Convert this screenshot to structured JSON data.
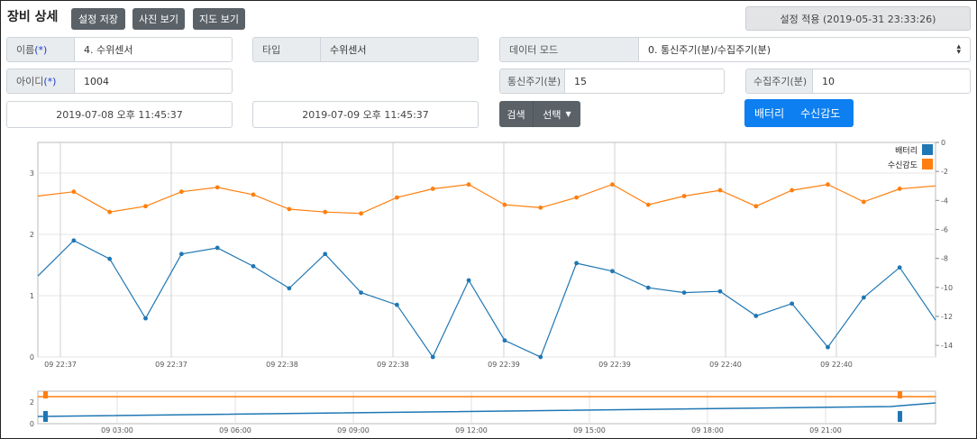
{
  "header": {
    "title": "장비 상세",
    "save_label": "설정 저장",
    "photo_label": "사진 보기",
    "map_label": "지도 보기",
    "apply_label": "설정 적용 (2019-05-31 23:33:26)"
  },
  "form": {
    "name_label": "이름",
    "name_req": "(*)",
    "name_value": "4. 수위센서",
    "type_label": "타입",
    "type_value": "수위센서",
    "mode_label": "데이터 모드",
    "mode_value": "0. 통신주기(분)/수집주기(분)",
    "id_label": "아이디",
    "id_req": "(*)",
    "id_value": "1004",
    "comm_label": "통신주기(분)",
    "comm_value": "15",
    "collect_label": "수집주기(분)",
    "collect_value": "10",
    "date_from": "2019-07-08 오후 11:45:37",
    "date_to": "2019-07-09 오후 11:45:37",
    "search_label": "검색",
    "select_label": "선택",
    "battery_btn": "배터리",
    "signal_btn": "수신감도"
  },
  "chart_data": {
    "type": "line",
    "x_tick_labels": [
      "09 22:37",
      "09 22:37",
      "09 22:38",
      "09 22:38",
      "09 22:39",
      "09 22:39",
      "09 22:40",
      "09 22:40"
    ],
    "y_left_ticks": [
      "0",
      "1",
      "2",
      "3"
    ],
    "y_right_ticks": [
      "0",
      "-2",
      "-4",
      "-6",
      "-8",
      "-10",
      "-12",
      "-14"
    ],
    "ylim_left": [
      0,
      3.5
    ],
    "ylim_right": [
      -14.8,
      0
    ],
    "grid": true,
    "legend_position": "top-right",
    "series": [
      {
        "name": "배터리",
        "color": "#1f77b4",
        "axis": "left",
        "values": [
          1.32,
          1.9,
          1.6,
          0.63,
          1.68,
          1.78,
          1.48,
          1.12,
          1.68,
          1.05,
          0.85,
          -0.02,
          1.25,
          0.27,
          -0.02,
          1.53,
          1.4,
          1.13,
          1.05,
          1.07,
          0.67,
          0.87,
          0.16,
          0.97,
          1.46,
          0.6
        ]
      },
      {
        "name": "수신감도",
        "color": "#ff7f0e",
        "axis": "right",
        "values": [
          -3.7,
          -3.4,
          -4.8,
          -4.4,
          -3.4,
          -3.1,
          -3.6,
          -4.6,
          -4.8,
          -4.9,
          -3.8,
          -3.2,
          -2.9,
          -4.3,
          -4.5,
          -3.8,
          -2.9,
          -4.3,
          -3.7,
          -3.3,
          -4.4,
          -3.3,
          -2.9,
          -4.1,
          -3.2,
          -3.0
        ]
      }
    ]
  },
  "navigator": {
    "tick_labels": [
      "09 03:00",
      "09 06:00",
      "09 09:00",
      "09 12:00",
      "09 15:00",
      "09 18:00",
      "09 21:00"
    ],
    "left_ticks": [
      "0",
      "2"
    ]
  }
}
